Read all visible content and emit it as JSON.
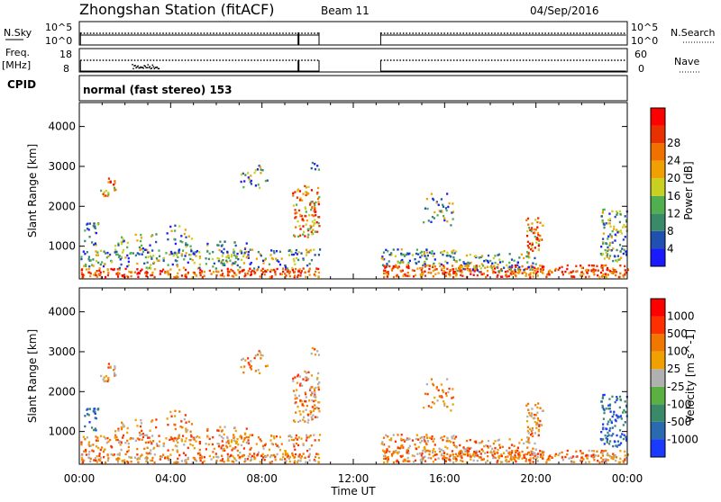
{
  "header": {
    "station": "Zhongshan Station (fitACF)",
    "beam": "Beam 11",
    "date": "04/Sep/2016"
  },
  "params": {
    "nsky_label": "N.Sky",
    "nsearch_label": "N.Search",
    "freq_label_1": "Freq.",
    "freq_label_2": "[MHz]",
    "nave_label": "Nave",
    "cpid_label": "CPID",
    "cpid_value": "normal (fast stereo) 153",
    "noise_left_ticks": [
      "10^5",
      "10^0"
    ],
    "noise_right_ticks": [
      "10^5",
      "10^0"
    ],
    "freq_left_ticks": [
      "18",
      "8"
    ],
    "freq_right_ticks": [
      "60",
      "0"
    ]
  },
  "chart_data": [
    {
      "type": "heatmap",
      "panel": "power",
      "ylabel": "Slant Range [km]",
      "xlabel": "Time UT",
      "xticks": [
        "00:00",
        "04:00",
        "08:00",
        "12:00",
        "16:00",
        "20:00",
        "00:00"
      ],
      "xlim_hours": [
        0,
        24
      ],
      "ylim": [
        180,
        4600
      ],
      "yticks": [
        1000,
        2000,
        3000,
        4000
      ],
      "data_gaps_hours": [
        [
          10.5,
          13.2
        ]
      ],
      "colorbar": {
        "label": "Power [dB]",
        "ticks": [
          "4",
          "8",
          "12",
          "16",
          "20",
          "24",
          "28"
        ],
        "colors": [
          "#1a1aff",
          "#2050b0",
          "#3a8a6a",
          "#50b050",
          "#c8d020",
          "#f0a000",
          "#f07000",
          "#e83000",
          "#ff0000"
        ]
      }
    },
    {
      "type": "heatmap",
      "panel": "velocity",
      "ylabel": "Slant Range [km]",
      "xlabel": "Time UT",
      "xticks": [
        "00:00",
        "04:00",
        "08:00",
        "12:00",
        "16:00",
        "20:00",
        "00:00"
      ],
      "xlim_hours": [
        0,
        24
      ],
      "ylim": [
        180,
        4600
      ],
      "yticks": [
        1000,
        2000,
        3000,
        4000
      ],
      "data_gaps_hours": [
        [
          10.5,
          13.2
        ]
      ],
      "colorbar": {
        "label": "Velocity [m s^-1]",
        "ticks": [
          "1000",
          "500",
          "100",
          "25",
          "-25",
          "-100",
          "-500",
          "-1000"
        ],
        "colors": [
          "#1a3aff",
          "#2a6ab0",
          "#3a8a6a",
          "#5ab040",
          "#b0b0b0",
          "#f0a000",
          "#f07800",
          "#ff3000",
          "#ff0000"
        ]
      }
    }
  ],
  "time_label": "Time UT"
}
